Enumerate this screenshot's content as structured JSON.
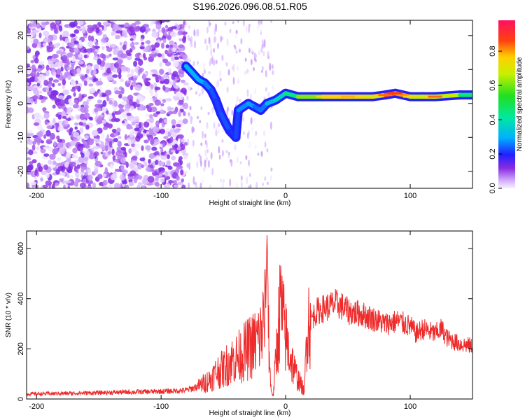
{
  "title": "S196.2026.096.08.51.R05",
  "colors": {
    "series": "#ee2a2a",
    "frame": "#000000"
  },
  "chart_data": [
    {
      "type": "heatmap",
      "name": "spectrogram",
      "xlabel": "Height of straight line (km)",
      "ylabel": "Frequency (Hz)",
      "xlim": [
        -208,
        150
      ],
      "ylim": [
        -25,
        24.5
      ],
      "xticks": [
        -200,
        -100,
        0,
        100
      ],
      "yticks": [
        -20,
        -10,
        0,
        10,
        20
      ],
      "colorbar": {
        "label": "Normalized spectral amplitude",
        "range": [
          0,
          0.98
        ],
        "ticks": [
          0.0,
          0.2,
          0.4,
          0.6,
          0.8
        ],
        "tick_labels": [
          "0.0",
          "0.2",
          "0.4",
          "0.6",
          "0.8"
        ]
      },
      "noise_region_x": [
        -208,
        -80
      ],
      "ridge": [
        {
          "x": -80,
          "y": 11,
          "v": 0.35
        },
        {
          "x": -75,
          "y": 9,
          "v": 0.3
        },
        {
          "x": -70,
          "y": 7,
          "v": 0.32
        },
        {
          "x": -65,
          "y": 6,
          "v": 0.28
        },
        {
          "x": -60,
          "y": 4,
          "v": 0.25
        },
        {
          "x": -56,
          "y": 1,
          "v": 0.22
        },
        {
          "x": -52,
          "y": -3,
          "v": 0.22
        },
        {
          "x": -48,
          "y": -6,
          "v": 0.25
        },
        {
          "x": -45,
          "y": -8,
          "v": 0.22
        },
        {
          "x": -40,
          "y": -10,
          "v": 0.2
        },
        {
          "x": -38,
          "y": -2,
          "v": 0.25
        },
        {
          "x": -30,
          "y": 0,
          "v": 0.3
        },
        {
          "x": -25,
          "y": -1,
          "v": 0.28
        },
        {
          "x": -20,
          "y": -2,
          "v": 0.22
        },
        {
          "x": -15,
          "y": 0,
          "v": 0.3
        },
        {
          "x": -8,
          "y": 1,
          "v": 0.35
        },
        {
          "x": 0,
          "y": 3,
          "v": 0.4
        },
        {
          "x": 10,
          "y": 2,
          "v": 0.5
        },
        {
          "x": 30,
          "y": 2,
          "v": 0.75
        },
        {
          "x": 50,
          "y": 2,
          "v": 0.8
        },
        {
          "x": 70,
          "y": 2,
          "v": 0.7
        },
        {
          "x": 80,
          "y": 2.5,
          "v": 0.85
        },
        {
          "x": 88,
          "y": 3,
          "v": 0.9
        },
        {
          "x": 100,
          "y": 2,
          "v": 0.75
        },
        {
          "x": 110,
          "y": 2,
          "v": 0.6
        },
        {
          "x": 120,
          "y": 2,
          "v": 0.85
        },
        {
          "x": 140,
          "y": 2.5,
          "v": 0.5
        },
        {
          "x": 150,
          "y": 2.5,
          "v": 0.45
        }
      ]
    },
    {
      "type": "line",
      "name": "snr",
      "xlabel": "Height of straight line (km)",
      "ylabel": "SNR (10 * v/v)",
      "xlim": [
        -208,
        150
      ],
      "ylim": [
        0,
        670
      ],
      "xticks": [
        -200,
        -100,
        0,
        100
      ],
      "yticks": [
        0,
        200,
        400,
        600
      ],
      "series": [
        {
          "name": "SNR",
          "x": [
            -208,
            -180,
            -150,
            -120,
            -100,
            -90,
            -80,
            -70,
            -60,
            -55,
            -50,
            -45,
            -40,
            -35,
            -30,
            -25,
            -20,
            -18,
            -16,
            -15,
            -13,
            -12,
            -10,
            -8,
            -6,
            -4,
            -2,
            0,
            2,
            5,
            8,
            10,
            12,
            14,
            15,
            16,
            17,
            18,
            20,
            22,
            25,
            30,
            40,
            45,
            50,
            60,
            70,
            80,
            90,
            100,
            105,
            110,
            120,
            125,
            130,
            140,
            150
          ],
          "y": [
            20,
            22,
            25,
            28,
            30,
            32,
            35,
            50,
            80,
            110,
            120,
            150,
            160,
            180,
            200,
            220,
            250,
            300,
            350,
            670,
            150,
            50,
            10,
            150,
            280,
            380,
            300,
            250,
            200,
            150,
            100,
            80,
            60,
            40,
            20,
            150,
            300,
            320,
            310,
            330,
            350,
            360,
            380,
            370,
            350,
            340,
            320,
            300,
            310,
            290,
            260,
            280,
            260,
            280,
            240,
            220,
            210
          ]
        }
      ]
    }
  ]
}
